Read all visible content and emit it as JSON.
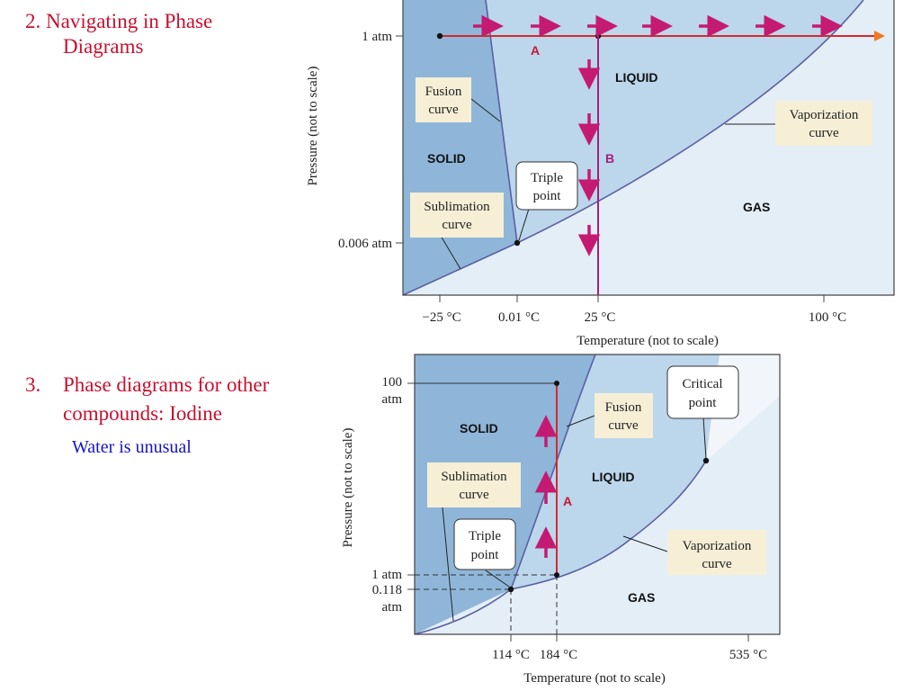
{
  "slide": {
    "heading2": {
      "line1": "2. Navigating in Phase",
      "line2": "Diagrams"
    },
    "heading3": {
      "number": "3.",
      "text": "Phase diagrams for other compounds: Iodine"
    },
    "note": "Water is unusual"
  },
  "diagram_water": {
    "ylabel": "Pressure (not to scale)",
    "xlabel": "Temperature (not to scale)",
    "y_ticks": [
      "1 atm",
      "0.006 atm"
    ],
    "x_ticks": [
      "−25 °C",
      "0.01 °C",
      "25 °C",
      "100 °C"
    ],
    "regions": {
      "solid": "SOLID",
      "liquid": "LIQUID",
      "gas": "GAS"
    },
    "labels": {
      "fusion": [
        "Fusion",
        "curve"
      ],
      "vaporization": [
        "Vaporization",
        "curve"
      ],
      "sublimation": [
        "Sublimation",
        "curve"
      ],
      "triple": [
        "Triple",
        "point"
      ]
    },
    "paths": {
      "a": "A",
      "b": "B"
    },
    "colors": {
      "solid": "#8fb6d9",
      "liquid": "#bcd6ec",
      "gas": "#e4eef7",
      "path": "#a3207a",
      "arrow": "#c41a72",
      "arrow_head": "#f07a20"
    }
  },
  "diagram_iodine": {
    "ylabel": "Pressure (not to scale)",
    "xlabel": "Temperature (not to scale)",
    "y_ticks": {
      "p100": [
        "100",
        "atm"
      ],
      "p1": "1 atm",
      "p0118": [
        "0.118",
        "atm"
      ]
    },
    "x_ticks": [
      "114 °C",
      "184 °C",
      "535 °C"
    ],
    "regions": {
      "solid": "SOLID",
      "liquid": "LIQUID",
      "gas": "GAS"
    },
    "labels": {
      "fusion": [
        "Fusion",
        "curve"
      ],
      "vaporization": [
        "Vaporization",
        "curve"
      ],
      "sublimation": [
        "Sublimation",
        "curve"
      ],
      "triple": [
        "Triple",
        "point"
      ],
      "critical": [
        "Critical",
        "point"
      ]
    },
    "paths": {
      "a": "A"
    },
    "colors": {
      "path": "#d42a2a",
      "arrow": "#c41a72"
    }
  }
}
